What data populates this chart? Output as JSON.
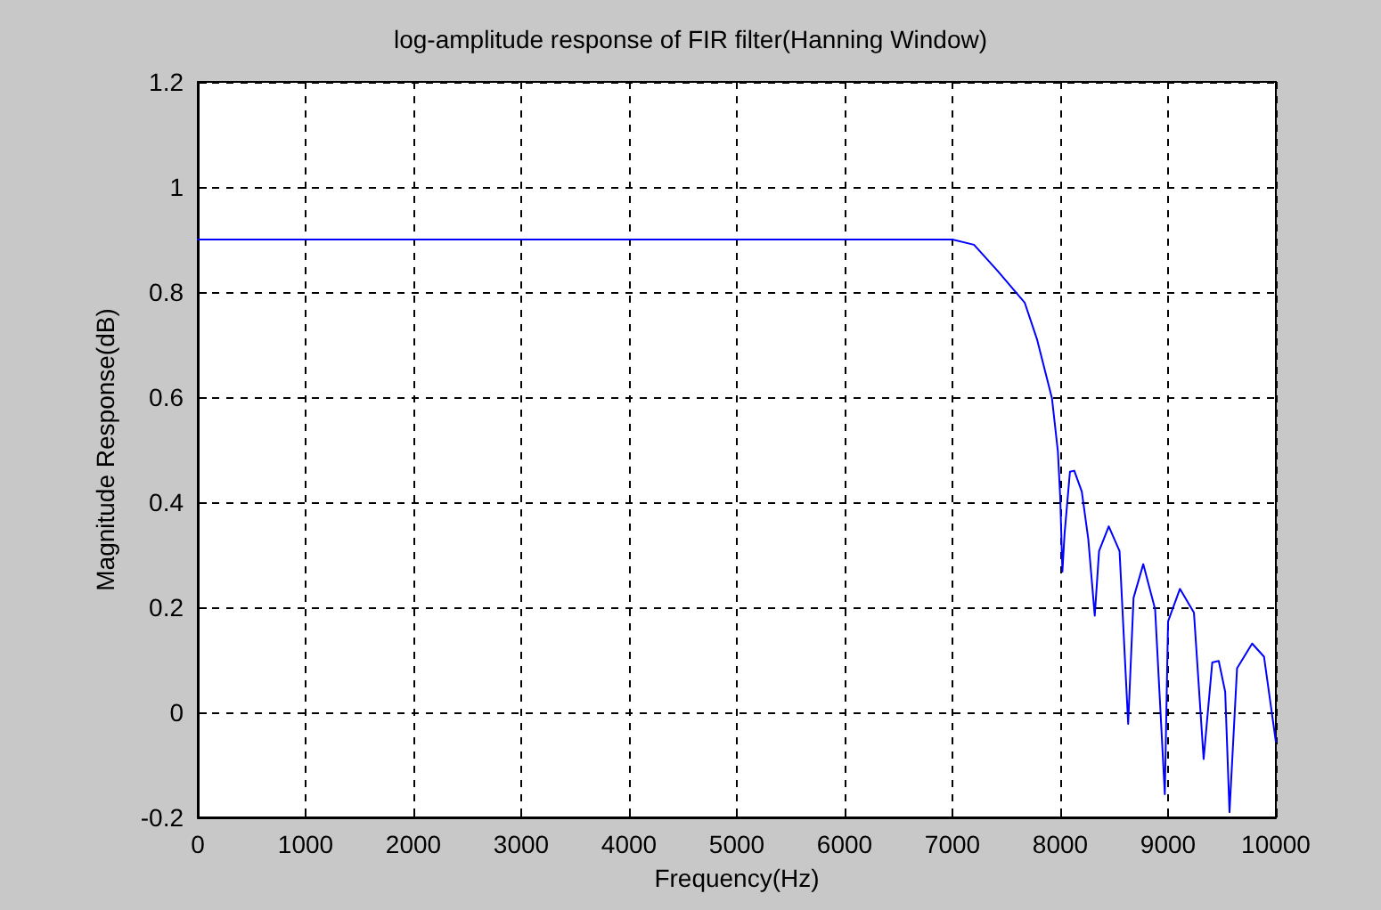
{
  "chart_data": {
    "type": "line",
    "title": "log-amplitude response of FIR filter(Hanning Window)",
    "xlabel": "Frequency(Hz)",
    "ylabel": "Magnitude Response(dB)",
    "x": [
      0,
      1000,
      2000,
      3000,
      4000,
      5000,
      6000,
      7000,
      7200,
      7420,
      7670,
      7786,
      7923,
      7978,
      8000,
      8020,
      8040,
      8090,
      8130,
      8200,
      8260,
      8320,
      8360,
      8450,
      8550,
      8630,
      8680,
      8770,
      8880,
      8970,
      9000,
      9110,
      9240,
      9330,
      9410,
      9470,
      9530,
      9570,
      9640,
      9780,
      9890,
      10000
    ],
    "series": [
      {
        "color": "#0000ff",
        "values": [
          0.9,
          0.9,
          0.9,
          0.9,
          0.9,
          0.9,
          0.9,
          0.9,
          0.89,
          0.84,
          0.78,
          0.709,
          0.598,
          0.497,
          0.408,
          0.268,
          0.34,
          0.458,
          0.46,
          0.42,
          0.33,
          0.184,
          0.307,
          0.354,
          0.307,
          -0.022,
          0.218,
          0.282,
          0.196,
          -0.156,
          0.173,
          0.235,
          0.19,
          -0.089,
          0.095,
          0.098,
          0.039,
          -0.19,
          0.084,
          0.131,
          0.106,
          -0.056
        ]
      }
    ],
    "xlim": [
      0,
      10000
    ],
    "xticks": [
      0,
      1000,
      2000,
      3000,
      4000,
      5000,
      6000,
      7000,
      8000,
      9000,
      10000
    ],
    "ylim": [
      -0.2,
      1.2
    ],
    "yticks": [
      -0.2,
      0,
      0.2,
      0.4,
      0.6,
      0.8,
      1,
      1.2
    ],
    "grid": true,
    "marker": "none",
    "line_style": "solid"
  }
}
